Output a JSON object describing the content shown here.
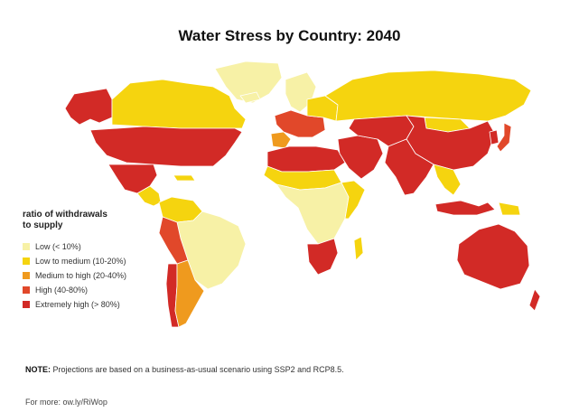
{
  "title": "Water Stress by Country: 2040",
  "legend": {
    "title_line1": "ratio of withdrawals",
    "title_line2": "to supply",
    "items": [
      {
        "label": "Low (< 10%)",
        "color": "#f7f1a6"
      },
      {
        "label": "Low to medium (10-20%)",
        "color": "#f5d40f"
      },
      {
        "label": "Medium to high (20-40%)",
        "color": "#ef9a1e"
      },
      {
        "label": "High (40-80%)",
        "color": "#e1482a"
      },
      {
        "label": "Extremely high (> 80%)",
        "color": "#d22a26"
      }
    ]
  },
  "note": {
    "label": "NOTE:",
    "text": " Projections are based on a business-as-usual scenario using SSP2 and RCP8.5."
  },
  "more": "For more: ow.ly/RiWop",
  "regions": [
    {
      "name": "alaska",
      "level": 4
    },
    {
      "name": "canada",
      "level": 1
    },
    {
      "name": "greenland",
      "level": 0
    },
    {
      "name": "usa",
      "level": 4
    },
    {
      "name": "mexico",
      "level": 4
    },
    {
      "name": "central-america",
      "level": 1
    },
    {
      "name": "cuba",
      "level": 1
    },
    {
      "name": "colombia-venezuela",
      "level": 1
    },
    {
      "name": "brazil",
      "level": 0
    },
    {
      "name": "peru-bolivia",
      "level": 3
    },
    {
      "name": "chile",
      "level": 4
    },
    {
      "name": "argentina",
      "level": 2
    },
    {
      "name": "iceland",
      "level": 0
    },
    {
      "name": "scandinavia",
      "level": 0
    },
    {
      "name": "western-europe",
      "level": 3
    },
    {
      "name": "iberia",
      "level": 2
    },
    {
      "name": "eastern-europe",
      "level": 1
    },
    {
      "name": "russia",
      "level": 1
    },
    {
      "name": "north-africa",
      "level": 4
    },
    {
      "name": "sahel",
      "level": 1
    },
    {
      "name": "central-africa",
      "level": 0
    },
    {
      "name": "east-africa",
      "level": 1
    },
    {
      "name": "southern-africa",
      "level": 4
    },
    {
      "name": "madagascar",
      "level": 1
    },
    {
      "name": "middle-east",
      "level": 4
    },
    {
      "name": "central-asia",
      "level": 4
    },
    {
      "name": "china",
      "level": 4
    },
    {
      "name": "mongolia",
      "level": 1
    },
    {
      "name": "india",
      "level": 4
    },
    {
      "name": "southeast-asia",
      "level": 1
    },
    {
      "name": "japan",
      "level": 3
    },
    {
      "name": "korea",
      "level": 4
    },
    {
      "name": "indonesia",
      "level": 4
    },
    {
      "name": "papua",
      "level": 1
    },
    {
      "name": "australia",
      "level": 4
    },
    {
      "name": "new-zealand",
      "level": 4
    }
  ]
}
